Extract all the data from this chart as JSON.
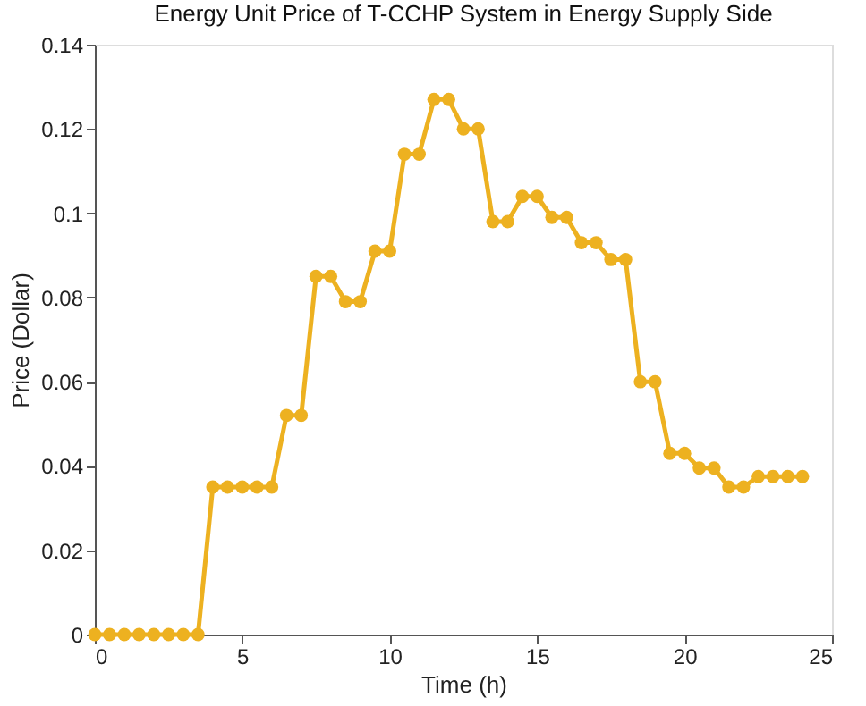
{
  "chart_data": {
    "type": "line",
    "title": "Energy Unit Price of T-CCHP System in Energy Supply Side",
    "xlabel": "Time (h)",
    "ylabel": "Price (Dollar)",
    "x": [
      0,
      0.5,
      1,
      1.5,
      2,
      2.5,
      3,
      3.5,
      4,
      4.5,
      5,
      5.5,
      6,
      6.5,
      7,
      7.5,
      8,
      8.5,
      9,
      9.5,
      10,
      10.5,
      11,
      11.5,
      12,
      12.5,
      13,
      13.5,
      14,
      14.5,
      15,
      15.5,
      16,
      16.5,
      17,
      17.5,
      18,
      18.5,
      19,
      19.5,
      20,
      20.5,
      21,
      21.5,
      22,
      22.5,
      23,
      23.5,
      24
    ],
    "series": [
      {
        "color": "#edb120",
        "values": [
          0,
          0,
          0,
          0,
          0,
          0,
          0,
          0,
          0.035,
          0.035,
          0.035,
          0.035,
          0.035,
          0.052,
          0.052,
          0.085,
          0.085,
          0.079,
          0.079,
          0.091,
          0.091,
          0.114,
          0.114,
          0.127,
          0.127,
          0.12,
          0.12,
          0.098,
          0.098,
          0.104,
          0.104,
          0.099,
          0.099,
          0.093,
          0.093,
          0.089,
          0.089,
          0.06,
          0.06,
          0.043,
          0.043,
          0.0395,
          0.0395,
          0.035,
          0.035,
          0.0375,
          0.0375,
          0.0375,
          0.0375
        ]
      }
    ],
    "xlim": [
      0,
      25
    ],
    "xticks": [
      0,
      5,
      10,
      15,
      20,
      25
    ],
    "ylim": [
      0,
      0.14
    ],
    "yticks": [
      0,
      0.02,
      0.04,
      0.06,
      0.08,
      0.1,
      0.12,
      0.14
    ],
    "grid": false,
    "legend": false,
    "marker": "circle",
    "line_style": "solid"
  }
}
